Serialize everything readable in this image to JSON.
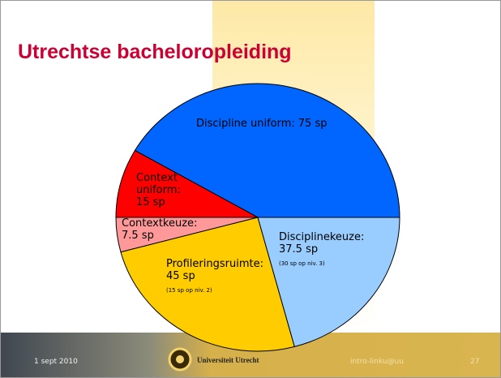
{
  "title": "Utrechtse bacheloropleiding",
  "chart_data": {
    "type": "pie",
    "categories": [
      "Discipline uniform:",
      "Context uniform:",
      "Contextkeuze:",
      "Profileringsruimte:",
      "Disciplinekeuze:"
    ],
    "values": [
      75,
      15,
      7.5,
      45,
      37.5
    ],
    "value_labels": [
      "75 sp",
      "15 sp",
      "7.5 sp",
      "45 sp",
      "37.5 sp"
    ],
    "notes": [
      null,
      null,
      null,
      "(15 sp op niv. 2)",
      "(30 sp op niv. 3)"
    ],
    "colors": [
      "#0066ff",
      "#ff0000",
      "#ff9999",
      "#ffcc00",
      "#99ccff"
    ]
  },
  "footer": {
    "date": "1 sept 2010",
    "university": "Universiteit Utrecht",
    "email": "intro-linku@uu",
    "page": "27"
  }
}
